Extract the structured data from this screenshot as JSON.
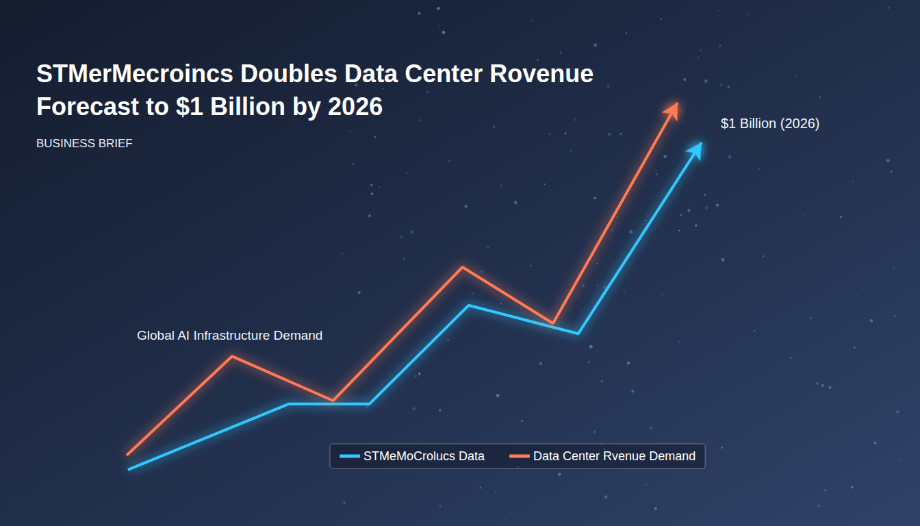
{
  "chart_data": {
    "type": "line",
    "title": "STMerMecroincs Doubles Data Center Rovenue Forecast to $1 Billion by 2026",
    "subtitle": "BUSINESS BRIEF",
    "annotations": [
      "Global AI Infrastructure Demand",
      "$1 Billion (2026)"
    ],
    "xlim": [
      0,
      100
    ],
    "ylim": [
      0,
      100
    ],
    "tick_labels": false,
    "grid": false,
    "legend": "bottom",
    "series": [
      {
        "name": "STMeMoCrolucs Data",
        "color": "#33c8ff",
        "marker": "arrow",
        "x": [
          4.1,
          30.2,
          43.3,
          59.4,
          77.2,
          97.2
        ],
        "values": [
          5.7,
          21.7,
          21.7,
          45.7,
          38.8,
          85.3
        ]
      },
      {
        "name": "Data Center Rvenue Demand",
        "color": "#ff7a55",
        "marker": "arrow",
        "x": [
          3.9,
          21.0,
          37.4,
          58.4,
          73.1,
          93.3
        ],
        "values": [
          9.2,
          33.3,
          22.5,
          55.0,
          41.3,
          95.0
        ]
      }
    ]
  }
}
